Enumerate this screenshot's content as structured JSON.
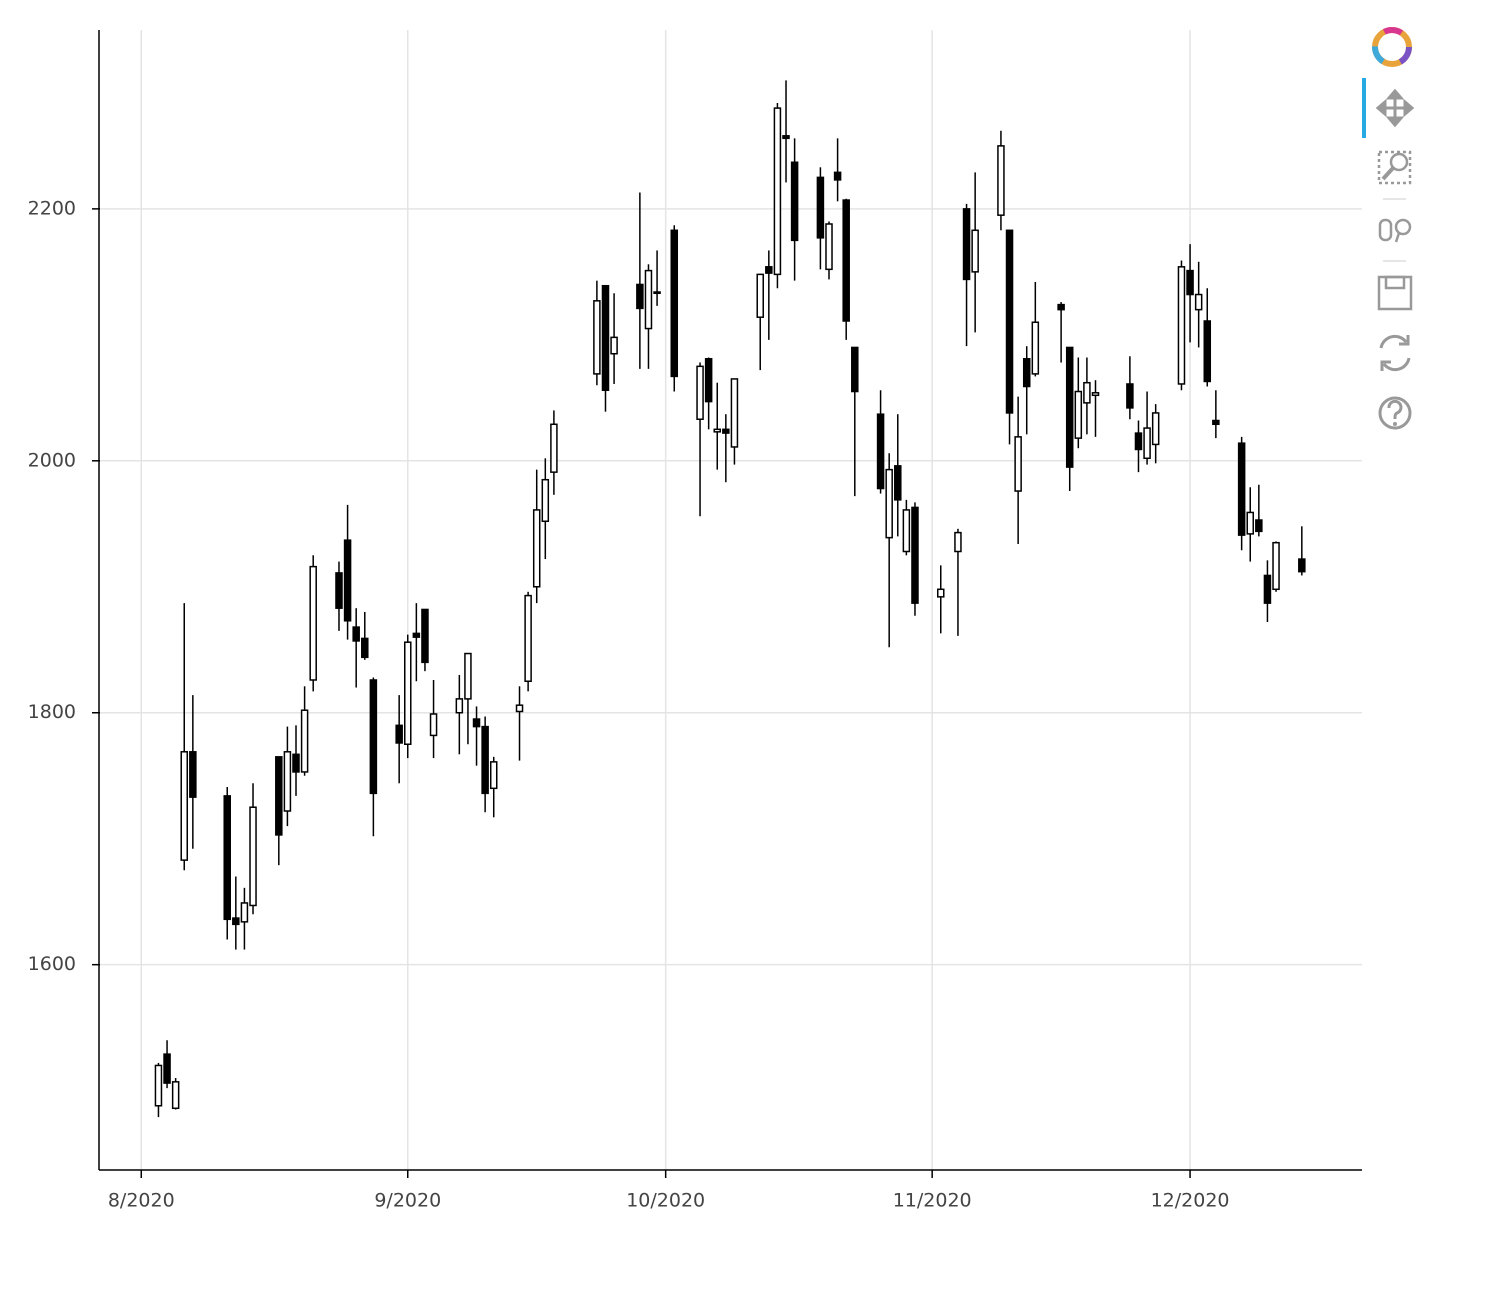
{
  "chart_data": {
    "type": "candlestick",
    "x": [
      2,
      3,
      4,
      5,
      6,
      10,
      11,
      12,
      13,
      16,
      17,
      18,
      19,
      20,
      23,
      24,
      25,
      26,
      27,
      30,
      31,
      32,
      33,
      34,
      37,
      38,
      39,
      40,
      41,
      44,
      45,
      46,
      47,
      48,
      53,
      54,
      55,
      58,
      59,
      60,
      62,
      65,
      66,
      67,
      68,
      69,
      72,
      73,
      74,
      75,
      76,
      79,
      80,
      81,
      82,
      83,
      86,
      87,
      88,
      89,
      90,
      93,
      95,
      96,
      97,
      100,
      101,
      102,
      103,
      104,
      107,
      108,
      109,
      110,
      111,
      115,
      116,
      117,
      118,
      121,
      122,
      123,
      124,
      125,
      128,
      129,
      130,
      131,
      132,
      135
    ],
    "open": [
      1488,
      1529,
      1486,
      1683,
      1769,
      1734,
      1637,
      1634,
      1647,
      1765,
      1722,
      1767,
      1753,
      1826,
      1911,
      1937,
      1868,
      1859,
      1826,
      1790,
      1775,
      1863,
      1882,
      1782,
      1800,
      1811,
      1795,
      1789,
      1740,
      1801,
      1825,
      1900,
      1952,
      1991,
      2069,
      2139,
      2085,
      2140,
      2105,
      2134,
      2183,
      2033,
      2081,
      2023,
      2025,
      2011,
      2114,
      2154,
      2148,
      2258,
      2237,
      2225,
      2152,
      2229,
      2207,
      2090,
      2037,
      1939,
      1996,
      1928,
      1963,
      1892,
      1928,
      2200,
      2150,
      2195,
      2183,
      1976,
      2081,
      2069,
      2124,
      2090,
      2018,
      2046,
      2052,
      2061,
      2022,
      2002,
      2013,
      2061,
      2151,
      2120,
      2111,
      2032,
      2014,
      1942,
      1953,
      1909,
      1898,
      1922
    ],
    "high": [
      1522,
      1540,
      1510,
      1887,
      1814,
      1741,
      1670,
      1661,
      1744,
      1765,
      1789,
      1790,
      1821,
      1925,
      1920,
      1965,
      1883,
      1880,
      1828,
      1814,
      1862,
      1887,
      1882,
      1826,
      1830,
      1847,
      1805,
      1797,
      1765,
      1821,
      1896,
      1993,
      2002,
      2040,
      2143,
      2139,
      2133,
      2213,
      2156,
      2167,
      2187,
      2078,
      2082,
      2062,
      2037,
      2065,
      2148,
      2167,
      2284,
      2302,
      2256,
      2233,
      2190,
      2256,
      2208,
      2090,
      2056,
      2006,
      2037,
      1969,
      1967,
      1917,
      1946,
      2204,
      2229,
      2262,
      2183,
      2051,
      2091,
      2142,
      2126,
      2090,
      2082,
      2082,
      2064,
      2083,
      2032,
      2055,
      2045,
      2159,
      2172,
      2158,
      2137,
      2056,
      2019,
      1979,
      1981,
      1921,
      1936,
      1948
    ],
    "low": [
      1479,
      1502,
      1485,
      1675,
      1692,
      1620,
      1612,
      1612,
      1640,
      1679,
      1710,
      1734,
      1750,
      1817,
      1865,
      1858,
      1820,
      1842,
      1702,
      1744,
      1764,
      1825,
      1833,
      1764,
      1767,
      1775,
      1758,
      1721,
      1717,
      1762,
      1817,
      1887,
      1922,
      1973,
      2060,
      2039,
      2061,
      2073,
      2073,
      2123,
      2055,
      1956,
      2025,
      1993,
      1983,
      1997,
      2072,
      2096,
      2137,
      2221,
      2143,
      2152,
      2144,
      2206,
      2096,
      1972,
      1974,
      1852,
      1940,
      1925,
      1877,
      1863,
      1861,
      2091,
      2102,
      2183,
      2013,
      1934,
      2021,
      2067,
      2078,
      1976,
      2010,
      2021,
      2019,
      2033,
      1991,
      1997,
      1998,
      2056,
      2094,
      2090,
      2059,
      2018,
      1929,
      1920,
      1940,
      1872,
      1896,
      1909
    ],
    "close": [
      1520,
      1506,
      1507,
      1769,
      1733,
      1636,
      1632,
      1649,
      1725,
      1703,
      1769,
      1753,
      1802,
      1916,
      1883,
      1873,
      1857,
      1844,
      1736,
      1776,
      1856,
      1860,
      1840,
      1799,
      1811,
      1847,
      1789,
      1736,
      1761,
      1806,
      1893,
      1961,
      1985,
      2029,
      2127,
      2056,
      2098,
      2121,
      2151,
      2133,
      2067,
      2075,
      2047,
      2025,
      2022,
      2065,
      2148,
      2149,
      2280,
      2256,
      2175,
      2177,
      2188,
      2223,
      2111,
      2055,
      1978,
      1993,
      1969,
      1961,
      1887,
      1898,
      1943,
      2144,
      2183,
      2250,
      2038,
      2019,
      2059,
      2110,
      2120,
      1995,
      2055,
      2062,
      2054,
      2042,
      2009,
      2026,
      2038,
      2154,
      2132,
      2132,
      2063,
      2029,
      1941,
      1959,
      1944,
      1887,
      1935,
      1912
    ],
    "increasing_color": "#ffffff",
    "decreasing_color": "#000000",
    "xlim": [
      -4.8,
      142
    ],
    "ylim": [
      1437,
      2342
    ],
    "xticks": [
      {
        "value": 0,
        "label": "8/2020"
      },
      {
        "value": 31,
        "label": "9/2020"
      },
      {
        "value": 61,
        "label": "10/2020"
      },
      {
        "value": 92,
        "label": "11/2020"
      },
      {
        "value": 122,
        "label": "12/2020"
      }
    ],
    "yticks": [
      1600,
      1800,
      2000,
      2200
    ],
    "grid": true
  }
}
